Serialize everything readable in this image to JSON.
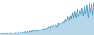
{
  "chart_data": {
    "type": "area",
    "values": [
      55,
      58,
      52,
      57,
      54,
      59,
      53,
      58,
      55,
      60,
      54,
      59,
      56,
      61,
      55,
      62,
      57,
      63,
      58,
      64,
      60,
      65,
      62,
      67,
      63,
      68,
      65,
      70,
      67,
      72,
      70,
      68,
      73,
      71,
      76,
      74,
      79,
      77,
      82,
      80,
      85,
      90,
      83,
      95,
      88,
      100,
      92,
      105,
      88,
      110,
      102,
      115,
      108,
      122,
      115,
      130,
      120,
      145,
      125,
      155,
      135,
      165,
      130,
      175,
      140,
      185,
      145,
      178,
      155,
      192,
      148,
      200,
      160,
      210,
      140,
      220,
      165,
      215,
      155,
      225
    ],
    "color": "#4a9cc8",
    "xlim": [
      0,
      79
    ],
    "ylim": [
      47,
      235
    ],
    "grid": false,
    "tick_labels": false
  }
}
